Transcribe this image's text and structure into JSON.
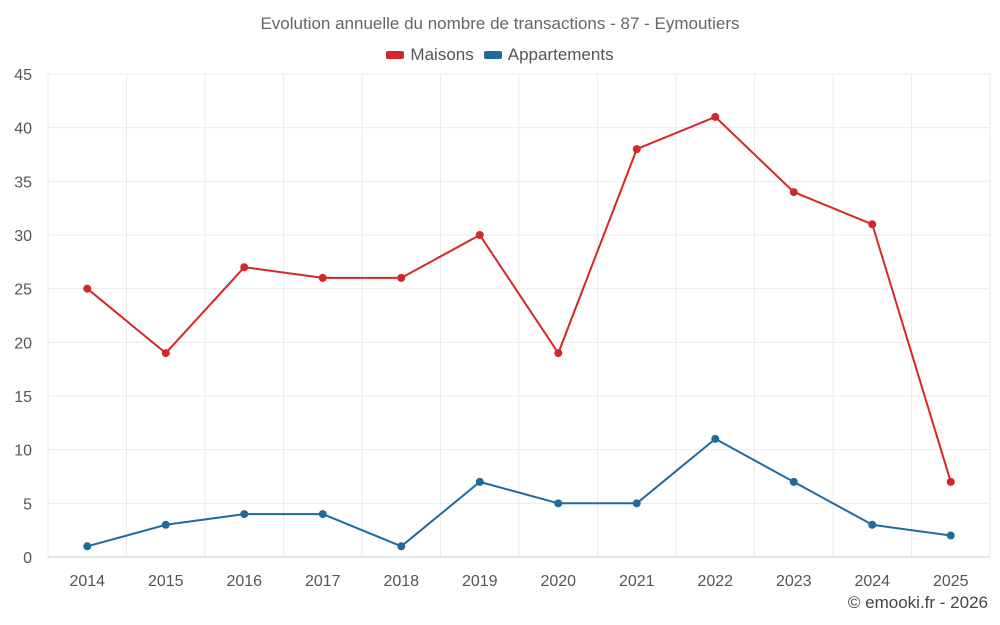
{
  "chart_data": {
    "type": "line",
    "title": "Evolution annuelle du nombre de transactions - 87 - Eymoutiers",
    "categories": [
      "2014",
      "2015",
      "2016",
      "2017",
      "2018",
      "2019",
      "2020",
      "2021",
      "2022",
      "2023",
      "2024",
      "2025"
    ],
    "series": [
      {
        "name": "Maisons",
        "color": "#d62728",
        "values": [
          25,
          19,
          27,
          26,
          26,
          30,
          19,
          38,
          41,
          34,
          31,
          7
        ]
      },
      {
        "name": "Appartements",
        "color": "#1f6b9e",
        "values": [
          1,
          3,
          4,
          4,
          1,
          7,
          5,
          5,
          11,
          7,
          3,
          2
        ]
      }
    ],
    "yticks": [
      "0",
      "5",
      "10",
      "15",
      "20",
      "25",
      "30",
      "35",
      "40",
      "45"
    ],
    "ylim": [
      0,
      45
    ],
    "grid": true,
    "legend": "top-center"
  },
  "credit": "© emooki.fr - 2026"
}
